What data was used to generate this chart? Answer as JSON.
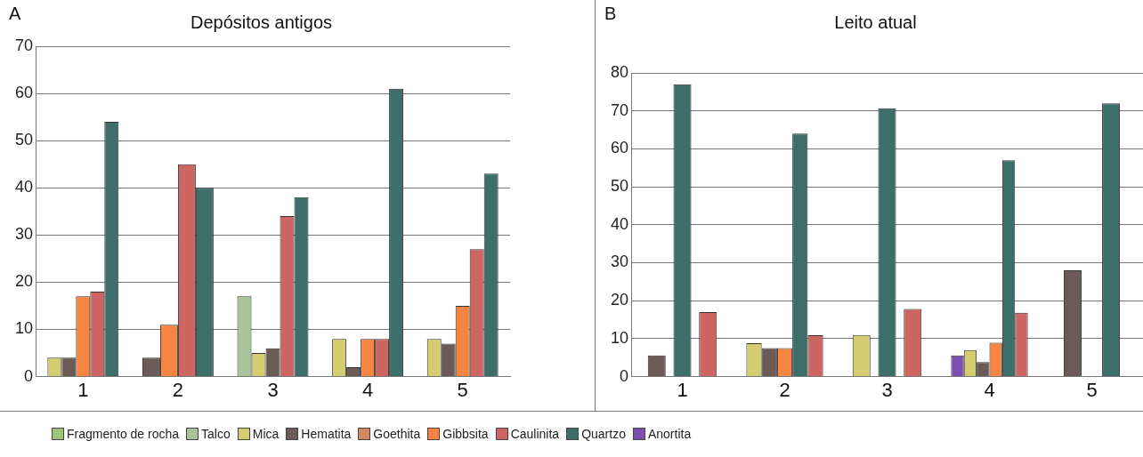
{
  "chart_data": [
    {
      "type": "bar",
      "title": "Depósitos antigos",
      "annotations": [
        "A"
      ],
      "categories": [
        "1",
        "2",
        "3",
        "4",
        "5"
      ],
      "series": [
        {
          "name": "Fragmento de rocha",
          "color": "#a3c27c",
          "values": [
            null,
            null,
            null,
            null,
            null
          ]
        },
        {
          "name": "Talco",
          "color": "#a9c39a",
          "values": [
            null,
            null,
            17,
            null,
            null
          ]
        },
        {
          "name": "Mica",
          "color": "#d4cd72",
          "values": [
            4,
            null,
            5,
            8,
            8
          ]
        },
        {
          "name": "Hematita",
          "color": "#6b5a55",
          "values": [
            4,
            4,
            6,
            2,
            7
          ]
        },
        {
          "name": "Goethita",
          "color": "#d08a5c",
          "values": [
            null,
            null,
            null,
            null,
            null
          ]
        },
        {
          "name": "Gibbsita",
          "color": "#f58540",
          "values": [
            17,
            11,
            null,
            8,
            15
          ]
        },
        {
          "name": "Caulinita",
          "color": "#cd6663",
          "values": [
            18,
            45,
            34,
            8,
            27
          ]
        },
        {
          "name": "Quartzo",
          "color": "#3d6e6a",
          "values": [
            54,
            40,
            38,
            61,
            43
          ]
        }
      ],
      "ylim": [
        0,
        70
      ],
      "yticks": [
        0,
        10,
        20,
        30,
        40,
        50,
        60,
        70
      ],
      "grid": "y",
      "legend": "bottom"
    },
    {
      "type": "bar",
      "title": "Leito atual",
      "annotations": [
        "B"
      ],
      "categories": [
        "1",
        "2",
        "3",
        "4",
        "5"
      ],
      "series": [
        {
          "name": "Anortita",
          "color": "#7f4fb0",
          "values": [
            null,
            null,
            null,
            5.6,
            null
          ]
        },
        {
          "name": "Mica",
          "color": "#d4cd72",
          "values": [
            null,
            8.8,
            11,
            7,
            null
          ]
        },
        {
          "name": "Hematita",
          "color": "#6b5a55",
          "values": [
            5.6,
            7.5,
            null,
            3.8,
            28
          ]
        },
        {
          "name": "Gibbsita",
          "color": "#f58540",
          "values": [
            null,
            7.5,
            null,
            8.9,
            null
          ]
        },
        {
          "name": "Quartzo",
          "color": "#3d6e6a",
          "values": [
            77,
            64,
            70.7,
            57,
            72
          ]
        },
        {
          "name": "Caulinita",
          "color": "#cd6663",
          "values": [
            17,
            10.9,
            17.8,
            16.8,
            null
          ]
        }
      ],
      "ylim": [
        0,
        80
      ],
      "yticks": [
        0,
        10,
        20,
        30,
        40,
        50,
        60,
        70,
        80
      ],
      "grid": "y",
      "legend": "bottom"
    }
  ]
}
